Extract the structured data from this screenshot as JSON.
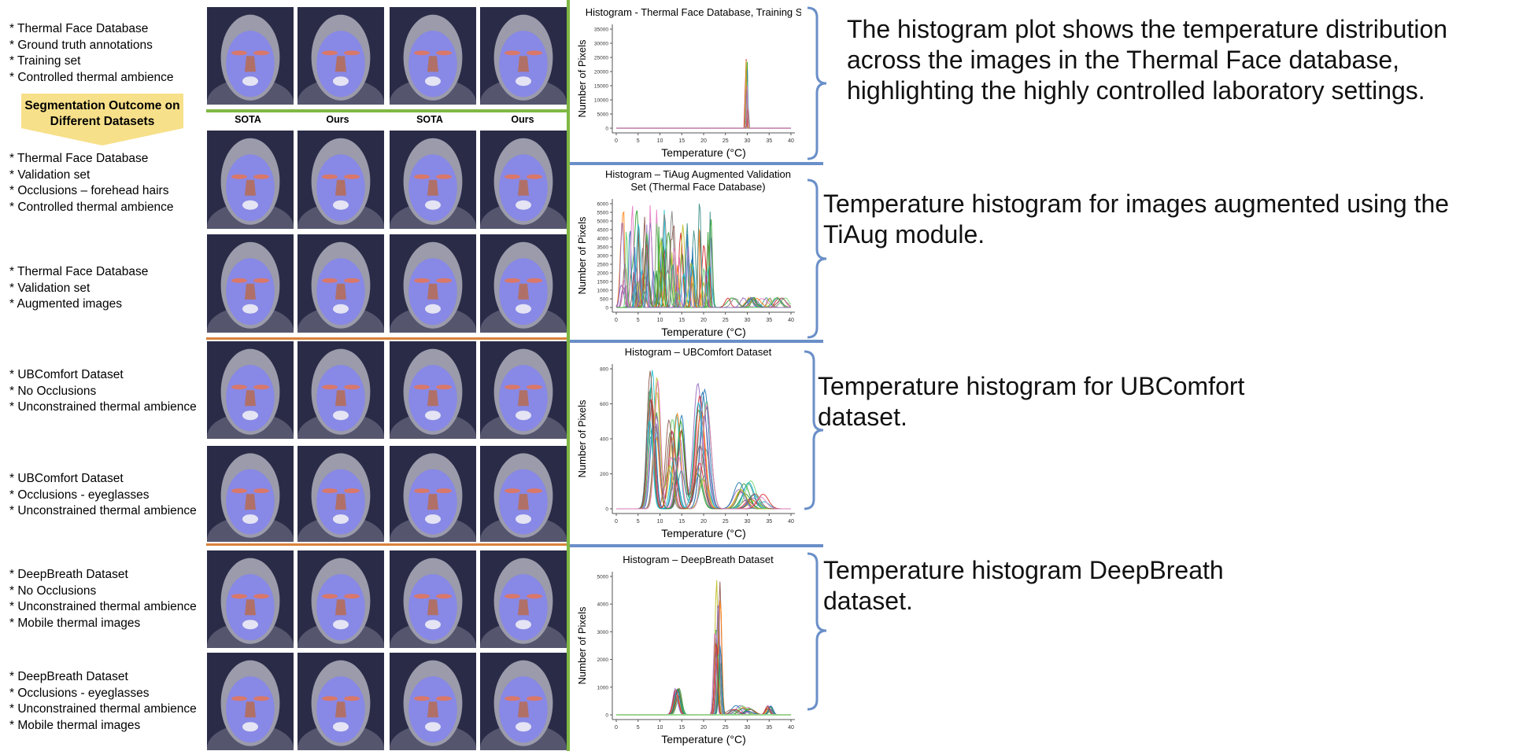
{
  "left_rows": [
    {
      "lines": [
        "* Thermal Face Database",
        "* Ground truth annotations",
        "* Training set",
        "* Controlled thermal ambience"
      ]
    },
    {
      "lines": [
        "* Thermal Face Database",
        "* Validation set",
        "* Occlusions – forehead hairs",
        "* Controlled thermal ambience"
      ]
    },
    {
      "lines": [
        "* Thermal Face Database",
        "* Validation set",
        "* Augmented images"
      ]
    },
    {
      "lines": [
        "* UBComfort Dataset",
        "* No Occlusions",
        "* Unconstrained thermal ambience"
      ]
    },
    {
      "lines": [
        "* UBComfort Dataset",
        "* Occlusions - eyeglasses",
        "* Unconstrained thermal ambience"
      ]
    },
    {
      "lines": [
        "* DeepBreath Dataset",
        "* No Occlusions",
        "* Unconstrained thermal ambience",
        "* Mobile thermal images"
      ]
    },
    {
      "lines": [
        "* DeepBreath Dataset",
        "* Occlusions - eyeglasses",
        "* Unconstrained thermal ambience",
        "* Mobile thermal images"
      ]
    }
  ],
  "arrow_label": "Segmentation Outcome on Different Datasets",
  "column_labels": [
    "SOTA",
    "Ours",
    "SOTA",
    "Ours"
  ],
  "colors": {
    "green_separator": "#7fb843",
    "orange_separator": "#d9823b",
    "blue_separator": "#6a8fc8",
    "arrow_fill": "#f7e08a"
  },
  "charts": [
    {
      "title": "Histogram - Thermal Face Database, Training Set",
      "xlabel": "Temperature (°C)",
      "ylabel": "Number of Pixels",
      "xticks": [
        "0",
        "5",
        "10",
        "15",
        "20",
        "25",
        "30",
        "35",
        "40"
      ],
      "yticks": [
        "0",
        "5000",
        "10000",
        "15000",
        "20000",
        "25000",
        "30000",
        "35000"
      ],
      "caption": [
        "The histogram plot shows the temperature distribution",
        "across the images in the Thermal Face database,",
        "highlighting the highly controlled laboratory settings."
      ]
    },
    {
      "title": "Histogram – TiAug Augmented Validation Set (Thermal Face Database)",
      "title_lines": [
        "Histogram – TiAug Augmented Validation",
        "Set (Thermal Face Database)"
      ],
      "xlabel": "Temperature (°C)",
      "ylabel": "Number of Pixels",
      "xticks": [
        "0",
        "5",
        "10",
        "15",
        "20",
        "25",
        "30",
        "35",
        "40"
      ],
      "yticks": [
        "0",
        "500",
        "1000",
        "1500",
        "2000",
        "2500",
        "3000",
        "3500",
        "4000",
        "4500",
        "5000",
        "5500",
        "6000"
      ],
      "caption": [
        "Temperature histogram for images augmented using the",
        "TiAug module."
      ]
    },
    {
      "title": "Histogram – UBComfort Dataset",
      "xlabel": "Temperature (°C)",
      "ylabel": "Number of Pixels",
      "xticks": [
        "0",
        "5",
        "10",
        "15",
        "20",
        "25",
        "30",
        "35",
        "40"
      ],
      "yticks": [
        "0",
        "200",
        "400",
        "600",
        "800"
      ],
      "caption": [
        "Temperature histogram for UBComfort",
        "dataset."
      ]
    },
    {
      "title": "Histogram – DeepBreath Dataset",
      "xlabel": "Temperature (°C)",
      "ylabel": "Number of Pixels",
      "xticks": [
        "0",
        "5",
        "10",
        "15",
        "20",
        "25",
        "30",
        "35",
        "40"
      ],
      "yticks": [
        "0",
        "1000",
        "2000",
        "3000",
        "4000",
        "5000"
      ],
      "caption": [
        "Temperature histogram DeepBreath",
        "dataset."
      ]
    }
  ]
}
